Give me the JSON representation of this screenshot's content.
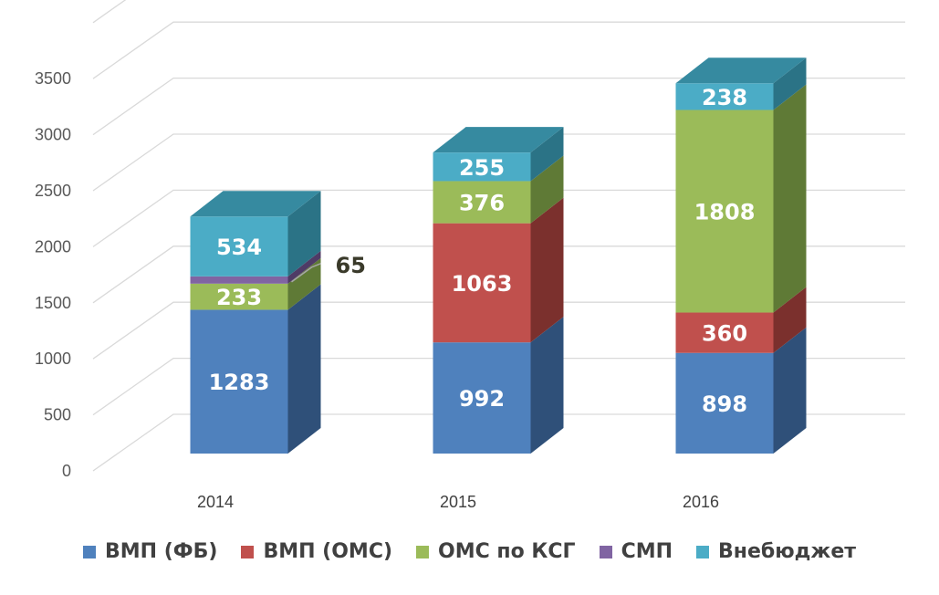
{
  "chart_data": {
    "type": "bar",
    "stacked": true,
    "style": "3d",
    "categories": [
      "2014",
      "2015",
      "2016"
    ],
    "yticks": [
      "0",
      "500",
      "1000",
      "1500",
      "2000",
      "2500",
      "3000",
      "3500"
    ],
    "ylim": [
      0,
      4000
    ],
    "series": [
      {
        "name": "ВМП (ФБ)",
        "color": "#4f81bd",
        "side": "#2f5079",
        "top": "#6a9bd1",
        "values": [
          1283,
          992,
          898
        ],
        "labels": [
          "1283",
          "992",
          "898"
        ]
      },
      {
        "name": "ВМП (ОМС)",
        "color": "#c0504d",
        "side": "#7b302d",
        "top": "#d46b68",
        "values": [
          0,
          1063,
          360
        ],
        "labels": [
          "",
          "1063",
          "360"
        ]
      },
      {
        "name": "ОМС по КСГ",
        "color": "#9bbb59",
        "side": "#5f7a36",
        "top": "#b5d276",
        "values": [
          233,
          376,
          1808
        ],
        "labels": [
          "233",
          "376",
          "1808"
        ]
      },
      {
        "name": "СМП",
        "color": "#8064a2",
        "side": "#4f3b66",
        "top": "#9a80bb",
        "values": [
          65,
          0,
          0
        ],
        "labels": [
          "65",
          "",
          ""
        ]
      },
      {
        "name": "Внебюджет",
        "color": "#4bacc6",
        "side": "#2b7386",
        "top": "#368aa0",
        "values": [
          534,
          255,
          238
        ],
        "labels": [
          "534",
          "255",
          "238"
        ]
      }
    ],
    "grid": true,
    "legend": "bottom"
  }
}
